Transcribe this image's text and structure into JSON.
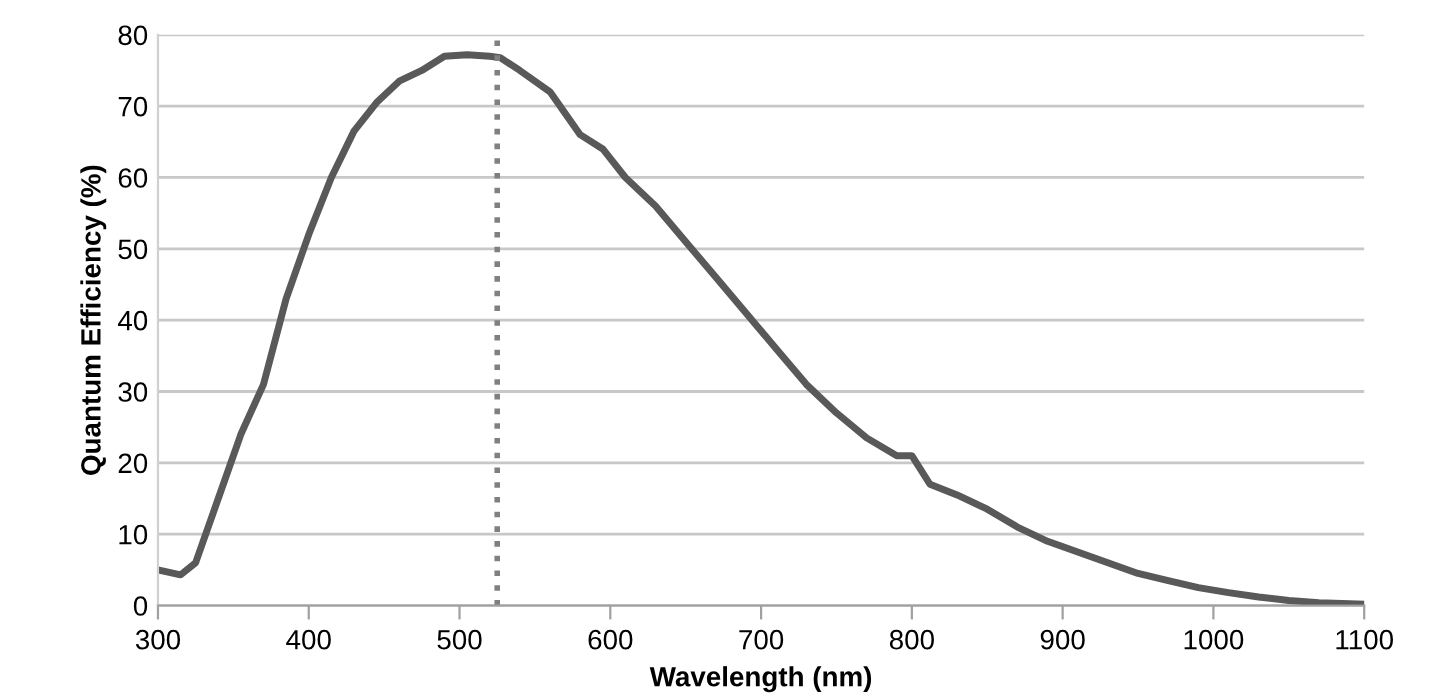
{
  "chart_data": {
    "type": "line",
    "xlabel": "Wavelength (nm)",
    "ylabel": "Quantum Efficiency (%)",
    "x": [
      300,
      315,
      325,
      340,
      355,
      370,
      385,
      400,
      415,
      430,
      445,
      460,
      475,
      490,
      505,
      520,
      527,
      540,
      560,
      580,
      595,
      610,
      630,
      650,
      670,
      690,
      710,
      730,
      750,
      770,
      790,
      800,
      812,
      830,
      850,
      870,
      890,
      910,
      930,
      950,
      970,
      990,
      1010,
      1030,
      1050,
      1070,
      1100
    ],
    "series": [
      {
        "color": "#595959",
        "values": [
          5,
          4.3,
          6,
          15,
          24,
          31,
          43,
          52,
          60,
          66.5,
          70.5,
          73.5,
          75,
          77,
          77.2,
          77,
          76.8,
          75,
          72,
          66,
          64,
          60,
          56,
          51,
          46,
          41,
          36,
          31,
          27,
          23.5,
          21,
          21,
          17,
          15.5,
          13.5,
          11,
          9,
          7.5,
          6,
          4.5,
          3.5,
          2.5,
          1.8,
          1.2,
          0.7,
          0.4,
          0.2
        ]
      }
    ],
    "xlim": [
      300,
      1100
    ],
    "xticks": [
      300,
      400,
      500,
      600,
      700,
      800,
      900,
      1000,
      1100
    ],
    "ylim": [
      0,
      80
    ],
    "yticks": [
      0,
      10,
      20,
      30,
      40,
      50,
      60,
      70,
      80
    ],
    "grid": "y",
    "legend": false,
    "marker": "none",
    "line_style": "solid",
    "ref_lines": [
      {
        "axis": "x",
        "value": 525,
        "color": "#808080",
        "line_style": "dotted"
      }
    ]
  }
}
